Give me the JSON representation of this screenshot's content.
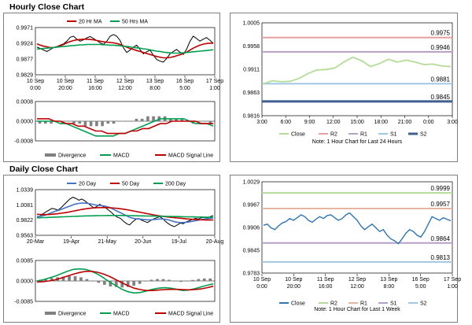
{
  "sections": {
    "hourly": {
      "title": "Hourly Close Chart"
    },
    "daily": {
      "title": "Daily Close Chart"
    }
  },
  "chart_data": [
    {
      "id": "hourly-price",
      "type": "line",
      "title": "Hourly Close Chart",
      "legend": [
        "20 Hr MA",
        "50 Hrs MA"
      ],
      "yticks": [
        "0.9971",
        "0.9924",
        "0.9877",
        "0.9829"
      ],
      "ylim": [
        0.9829,
        0.9971
      ],
      "xticks": [
        "10 Sep|0:00",
        "10 Sep|20:00",
        "11 Sep|16:00",
        "12 Sep|12:00",
        "13 Sep|8:00",
        "16 Sep|5:00",
        "17 Sep|1:00"
      ],
      "series": [
        {
          "name": "Close",
          "color": "#000000",
          "values": [
            0.9912,
            0.9908,
            0.9903,
            0.9899,
            0.9905,
            0.9911,
            0.9914,
            0.9918,
            0.9922,
            0.993,
            0.9942,
            0.9945,
            0.9936,
            0.993,
            0.9934,
            0.994,
            0.9944,
            0.9938,
            0.9932,
            0.9925,
            0.992,
            0.993,
            0.9945,
            0.995,
            0.9945,
            0.9932,
            0.991,
            0.9896,
            0.9903,
            0.9912,
            0.9918,
            0.9905,
            0.9892,
            0.9898,
            0.9903,
            0.9888,
            0.9875,
            0.987,
            0.9867,
            0.9878,
            0.9892,
            0.9899,
            0.9905,
            0.9897,
            0.989,
            0.9906,
            0.9929,
            0.9945,
            0.9938,
            0.993,
            0.9936,
            0.9941,
            0.9933,
            0.9924
          ]
        },
        {
          "name": "20 Hr MA",
          "color": "#c00000",
          "values": [
            0.9922,
            0.9918,
            0.9915,
            0.9913,
            0.9911,
            0.9911,
            0.9913,
            0.9916,
            0.992,
            0.9925,
            0.9929,
            0.9932,
            0.9934,
            0.9935,
            0.9936,
            0.9936,
            0.9935,
            0.9934,
            0.9932,
            0.993,
            0.9928,
            0.9927,
            0.9926,
            0.9925,
            0.9923,
            0.992,
            0.9916,
            0.9912,
            0.9908,
            0.9905,
            0.9902,
            0.9899,
            0.9896,
            0.9893,
            0.989,
            0.9887,
            0.9884,
            0.9882,
            0.988,
            0.988,
            0.9881,
            0.9883,
            0.9886,
            0.9889,
            0.9893,
            0.9897,
            0.9903,
            0.9909,
            0.9914,
            0.9918,
            0.9921,
            0.9923,
            0.9924,
            0.9924
          ]
        },
        {
          "name": "50 Hrs MA",
          "color": "#00a050",
          "values": [
            0.9906,
            0.9907,
            0.9908,
            0.9909,
            0.991,
            0.9911,
            0.9912,
            0.9913,
            0.9914,
            0.9915,
            0.9916,
            0.9917,
            0.9918,
            0.9919,
            0.9919,
            0.992,
            0.992,
            0.992,
            0.992,
            0.992,
            0.9919,
            0.9919,
            0.9918,
            0.9918,
            0.9917,
            0.9916,
            0.9915,
            0.9914,
            0.9913,
            0.9911,
            0.991,
            0.9909,
            0.9907,
            0.9906,
            0.9904,
            0.9902,
            0.99,
            0.9899,
            0.9897,
            0.9896,
            0.9895,
            0.9894,
            0.9894,
            0.9894,
            0.9895,
            0.9896,
            0.9897,
            0.9898,
            0.9899,
            0.99,
            0.9901,
            0.9902,
            0.9903,
            0.9904
          ]
        }
      ]
    },
    {
      "id": "hourly-macd",
      "type": "bar",
      "yticks": [
        "0.0008",
        "0.0000",
        "-0.0008"
      ],
      "ylim": [
        -0.0008,
        0.0008
      ],
      "legend": [
        "Divergence",
        "MACD",
        "MACD Signal Line"
      ],
      "series": [
        {
          "name": "MACD",
          "color": "#00a050",
          "values": [
            0.0,
            0.0,
            0.0,
            0.0,
            -0.0001,
            -0.0001,
            -0.0002,
            -0.0003,
            -0.0004,
            -0.0005,
            -0.0006,
            -0.0006,
            -0.0006,
            -0.0006,
            -0.0005,
            -0.0005,
            -0.0004,
            -0.0003,
            -0.0002,
            -0.0001,
            0.0,
            0.0001,
            0.0001,
            0.0001,
            0.0001,
            0.0001,
            0.0,
            -0.0001,
            -0.0001,
            -0.0001,
            -0.0002
          ]
        },
        {
          "name": "MACD Signal Line",
          "color": "#c00000",
          "values": [
            0.0001,
            0.0001,
            0.0001,
            0.0,
            0.0,
            -0.0001,
            -0.0001,
            -0.0002,
            -0.0002,
            -0.0003,
            -0.0004,
            -0.0004,
            -0.0005,
            -0.0005,
            -0.0005,
            -0.0005,
            -0.0004,
            -0.0004,
            -0.0003,
            -0.0003,
            -0.0002,
            -0.0001,
            -0.0001,
            0.0,
            0.0,
            0.0,
            0.0,
            0.0,
            -0.0001,
            -0.0001,
            -0.0001
          ]
        },
        {
          "name": "Divergence",
          "color": "#808080",
          "values": [
            -0.0001,
            -0.0001,
            -0.0001,
            0.0,
            -0.0001,
            0.0,
            -0.0001,
            -0.0001,
            -0.0002,
            -0.0002,
            -0.0002,
            -0.0002,
            -0.0001,
            -0.0001,
            0.0,
            0.0,
            0.0,
            0.0001,
            0.0001,
            0.0002,
            0.0002,
            0.0002,
            0.0002,
            0.0001,
            0.0001,
            0.0001,
            0.0,
            -0.0001,
            0.0,
            0.0,
            -0.0001
          ]
        }
      ]
    },
    {
      "id": "hourly-pivot",
      "type": "line",
      "yticks": [
        "1.0005",
        "0.9958",
        "0.9911",
        "0.9863",
        "0.9816"
      ],
      "ylim": [
        0.9816,
        1.0005
      ],
      "xticks": [
        "3:00",
        "6:00",
        "9:00",
        "12:00",
        "15:00",
        "18:00",
        "21:00",
        "0:00",
        "3:00"
      ],
      "levels": [
        {
          "name": "R2",
          "value": 0.9975,
          "label": "0.9975",
          "color": "#e6a0a0"
        },
        {
          "name": "R1",
          "value": 0.9946,
          "label": "0.9946",
          "color": "#b4a0c8"
        },
        {
          "name": "S1",
          "value": 0.9881,
          "label": "0.9881",
          "color": "#a0c8e6"
        },
        {
          "name": "S2",
          "value": 0.9845,
          "label": "0.9845",
          "color": "#3f5f8f"
        }
      ],
      "series": [
        {
          "name": "Close",
          "color": "#b4dc96",
          "values": [
            0.9881,
            0.9887,
            0.9885,
            0.9886,
            0.9892,
            0.9902,
            0.9909,
            0.991,
            0.9913,
            0.9925,
            0.9935,
            0.9928,
            0.9916,
            0.9922,
            0.9931,
            0.9925,
            0.9929,
            0.9925,
            0.992,
            0.9921,
            0.9917,
            0.9916
          ]
        }
      ],
      "legend": [
        "Close",
        "R2",
        "R1",
        "S1",
        "S2"
      ],
      "note": "Note: 1 Hour Chart for Last 24 Hours"
    },
    {
      "id": "daily-price",
      "type": "line",
      "title": "Daily Close Chart",
      "legend": [
        "20 Day",
        "50 Day",
        "200 Day"
      ],
      "yticks": [
        "1.0339",
        "1.0081",
        "0.9822",
        "0.9563"
      ],
      "ylim": [
        0.9563,
        1.0339
      ],
      "xticks": [
        "20-Mar",
        "19-Apr",
        "21-May",
        "20-Jun",
        "19-Jul",
        "20-Aug"
      ],
      "series": [
        {
          "name": "Close",
          "color": "#000000",
          "values": [
            0.987,
            0.989,
            0.993,
            0.996,
            0.999,
            1.002,
            1.001,
            0.999,
            1.003,
            1.008,
            1.013,
            1.018,
            1.021,
            1.019,
            1.016,
            1.018,
            1.015,
            1.011,
            1.007,
            1.003,
            1.005,
            1.009,
            1.006,
            1.003,
            0.999,
            0.995,
            0.99,
            0.987,
            0.985,
            0.98,
            0.976,
            0.974,
            0.979,
            0.983,
            0.985,
            0.982,
            0.98,
            0.978,
            0.981,
            0.984,
            0.986,
            0.988,
            0.985,
            0.98,
            0.976,
            0.973,
            0.971,
            0.974,
            0.977,
            0.976,
            0.979,
            0.981,
            0.983,
            0.985,
            0.984,
            0.986,
            0.987,
            0.986,
            0.988,
            0.99
          ]
        },
        {
          "name": "20 Day",
          "color": "#4472c4",
          "values": [
            0.988,
            0.9885,
            0.9895,
            0.991,
            0.993,
            0.995,
            0.997,
            0.9985,
            1.0,
            1.002,
            1.004,
            1.006,
            1.008,
            1.0095,
            1.0105,
            1.011,
            1.011,
            1.0105,
            1.0095,
            1.0085,
            1.0075,
            1.007,
            1.0065,
            1.0055,
            1.004,
            1.002,
            0.9995,
            0.997,
            0.9945,
            0.992,
            0.9895,
            0.987,
            0.9855,
            0.9845,
            0.984,
            0.9835,
            0.983,
            0.9825,
            0.9825,
            0.983,
            0.9835,
            0.984,
            0.984,
            0.9835,
            0.9825,
            0.981,
            0.9795,
            0.9785,
            0.978,
            0.978,
            0.9785,
            0.979,
            0.98,
            0.981,
            0.982,
            0.983,
            0.984,
            0.9845,
            0.985,
            0.986
          ]
        },
        {
          "name": "50 Day",
          "color": "#c00000",
          "values": [
            0.992,
            0.9918,
            0.9916,
            0.9915,
            0.9916,
            0.992,
            0.9925,
            0.993,
            0.9937,
            0.9945,
            0.9953,
            0.9962,
            0.9972,
            0.9982,
            0.9992,
            1.0002,
            1.001,
            1.0017,
            1.0023,
            1.0028,
            1.0032,
            1.0034,
            1.0035,
            1.0034,
            1.0032,
            1.0029,
            1.0025,
            1.002,
            1.0014,
            1.0007,
            0.9999,
            0.999,
            0.998,
            0.997,
            0.996,
            0.995,
            0.994,
            0.993,
            0.992,
            0.9911,
            0.9902,
            0.9894,
            0.9887,
            0.988,
            0.9874,
            0.9868,
            0.9863,
            0.9858,
            0.9853,
            0.9848,
            0.9843,
            0.9839,
            0.9835,
            0.9831,
            0.9828,
            0.9826,
            0.9824,
            0.9823,
            0.9822,
            0.9822
          ]
        },
        {
          "name": "200 Day",
          "color": "#00a050",
          "values": [
            0.986,
            0.9862,
            0.9864,
            0.9866,
            0.9868,
            0.987,
            0.9872,
            0.9874,
            0.9876,
            0.9878,
            0.988,
            0.9882,
            0.9884,
            0.9886,
            0.9888,
            0.989,
            0.9892,
            0.9893,
            0.9894,
            0.9895,
            0.9896,
            0.9897,
            0.9898,
            0.9899,
            0.99,
            0.99,
            0.99,
            0.99,
            0.99,
            0.9899,
            0.9898,
            0.9897,
            0.9896,
            0.9895,
            0.9894,
            0.9893,
            0.9892,
            0.9891,
            0.989,
            0.9889,
            0.9888,
            0.9887,
            0.9886,
            0.9885,
            0.9884,
            0.9883,
            0.9882,
            0.9881,
            0.988,
            0.9879,
            0.9878,
            0.9877,
            0.9876,
            0.9875,
            0.9874,
            0.9873,
            0.9872,
            0.9871,
            0.987,
            0.9869
          ]
        }
      ]
    },
    {
      "id": "daily-macd",
      "type": "bar",
      "yticks": [
        "0.0085",
        "0.0000",
        "-0.0085"
      ],
      "ylim": [
        -0.0085,
        0.0085
      ],
      "legend": [
        "Divergence",
        "MACD",
        "MACD Signal Line"
      ],
      "series": [
        {
          "name": "MACD",
          "color": "#00a050",
          "values": [
            0.0,
            0.0005,
            0.0012,
            0.002,
            0.003,
            0.004,
            0.0048,
            0.005,
            0.0048,
            0.004,
            0.0028,
            0.0012,
            -0.0005,
            -0.002,
            -0.0035,
            -0.0045,
            -0.005,
            -0.0048,
            -0.0042,
            -0.0035,
            -0.003,
            -0.0028,
            -0.003,
            -0.0035,
            -0.004,
            -0.0038,
            -0.0032,
            -0.0025,
            -0.0018,
            -0.0012
          ]
        },
        {
          "name": "MACD Signal Line",
          "color": "#c00000",
          "values": [
            -0.0005,
            -0.0003,
            0.0,
            0.0005,
            0.0012,
            0.002,
            0.0028,
            0.0035,
            0.004,
            0.004,
            0.0036,
            0.0028,
            0.0018,
            0.0005,
            -0.0008,
            -0.002,
            -0.003,
            -0.0036,
            -0.004,
            -0.004,
            -0.0038,
            -0.0036,
            -0.0035,
            -0.0035,
            -0.0036,
            -0.0037,
            -0.0036,
            -0.0033,
            -0.0028,
            -0.0022
          ]
        },
        {
          "name": "Divergence",
          "color": "#808080",
          "values": [
            0.0005,
            0.0008,
            0.0012,
            0.0015,
            0.0018,
            0.002,
            0.002,
            0.0015,
            0.0008,
            0.0,
            -0.0008,
            -0.0016,
            -0.0023,
            -0.0025,
            -0.0027,
            -0.0025,
            -0.002,
            -0.0012,
            -0.0002,
            0.0005,
            0.0008,
            0.0008,
            0.0005,
            0.0,
            -0.0004,
            -0.0001,
            0.0004,
            0.0008,
            0.001,
            0.001
          ]
        }
      ]
    },
    {
      "id": "daily-pivot",
      "type": "line",
      "yticks": [
        "1.0029",
        "0.9967",
        "0.9906",
        "0.9845",
        "0.9783"
      ],
      "ylim": [
        0.9783,
        1.0029
      ],
      "xticks": [
        "10 Sep|0:00",
        "10 Sep|20:00",
        "11 Sep|16:00",
        "12 Sep|12:00",
        "13 Sep|8:00",
        "16 Sep|5:00",
        "17 Sep|1:00"
      ],
      "levels": [
        {
          "name": "R2",
          "value": 0.9999,
          "label": "0.9999",
          "color": "#b4dc96"
        },
        {
          "name": "R1",
          "value": 0.9957,
          "label": "0.9957",
          "color": "#e6b4a0"
        },
        {
          "name": "S1",
          "value": 0.9864,
          "label": "0.9864",
          "color": "#b4a0c8"
        },
        {
          "name": "S2",
          "value": 0.9813,
          "label": "0.9813",
          "color": "#a0c8e6"
        }
      ],
      "series": [
        {
          "name": "Close",
          "color": "#2e75b6",
          "values": [
            0.9912,
            0.9915,
            0.9905,
            0.99,
            0.991,
            0.9918,
            0.9922,
            0.993,
            0.9925,
            0.9932,
            0.994,
            0.9935,
            0.9925,
            0.992,
            0.9928,
            0.9935,
            0.993,
            0.9938,
            0.994,
            0.9932,
            0.9925,
            0.993,
            0.994,
            0.9945,
            0.9935,
            0.9925,
            0.991,
            0.99,
            0.9908,
            0.9915,
            0.9905,
            0.9895,
            0.99,
            0.9885,
            0.9875,
            0.987,
            0.9862,
            0.9875,
            0.989,
            0.99,
            0.9895,
            0.9885,
            0.988,
            0.9895,
            0.9915,
            0.9935,
            0.993,
            0.9925,
            0.9932,
            0.9928,
            0.9924
          ]
        }
      ],
      "legend": [
        "Close",
        "R2",
        "R1",
        "S1",
        "S2"
      ],
      "note": "Note: 1 Hour Chart for Last 1 Week"
    }
  ]
}
